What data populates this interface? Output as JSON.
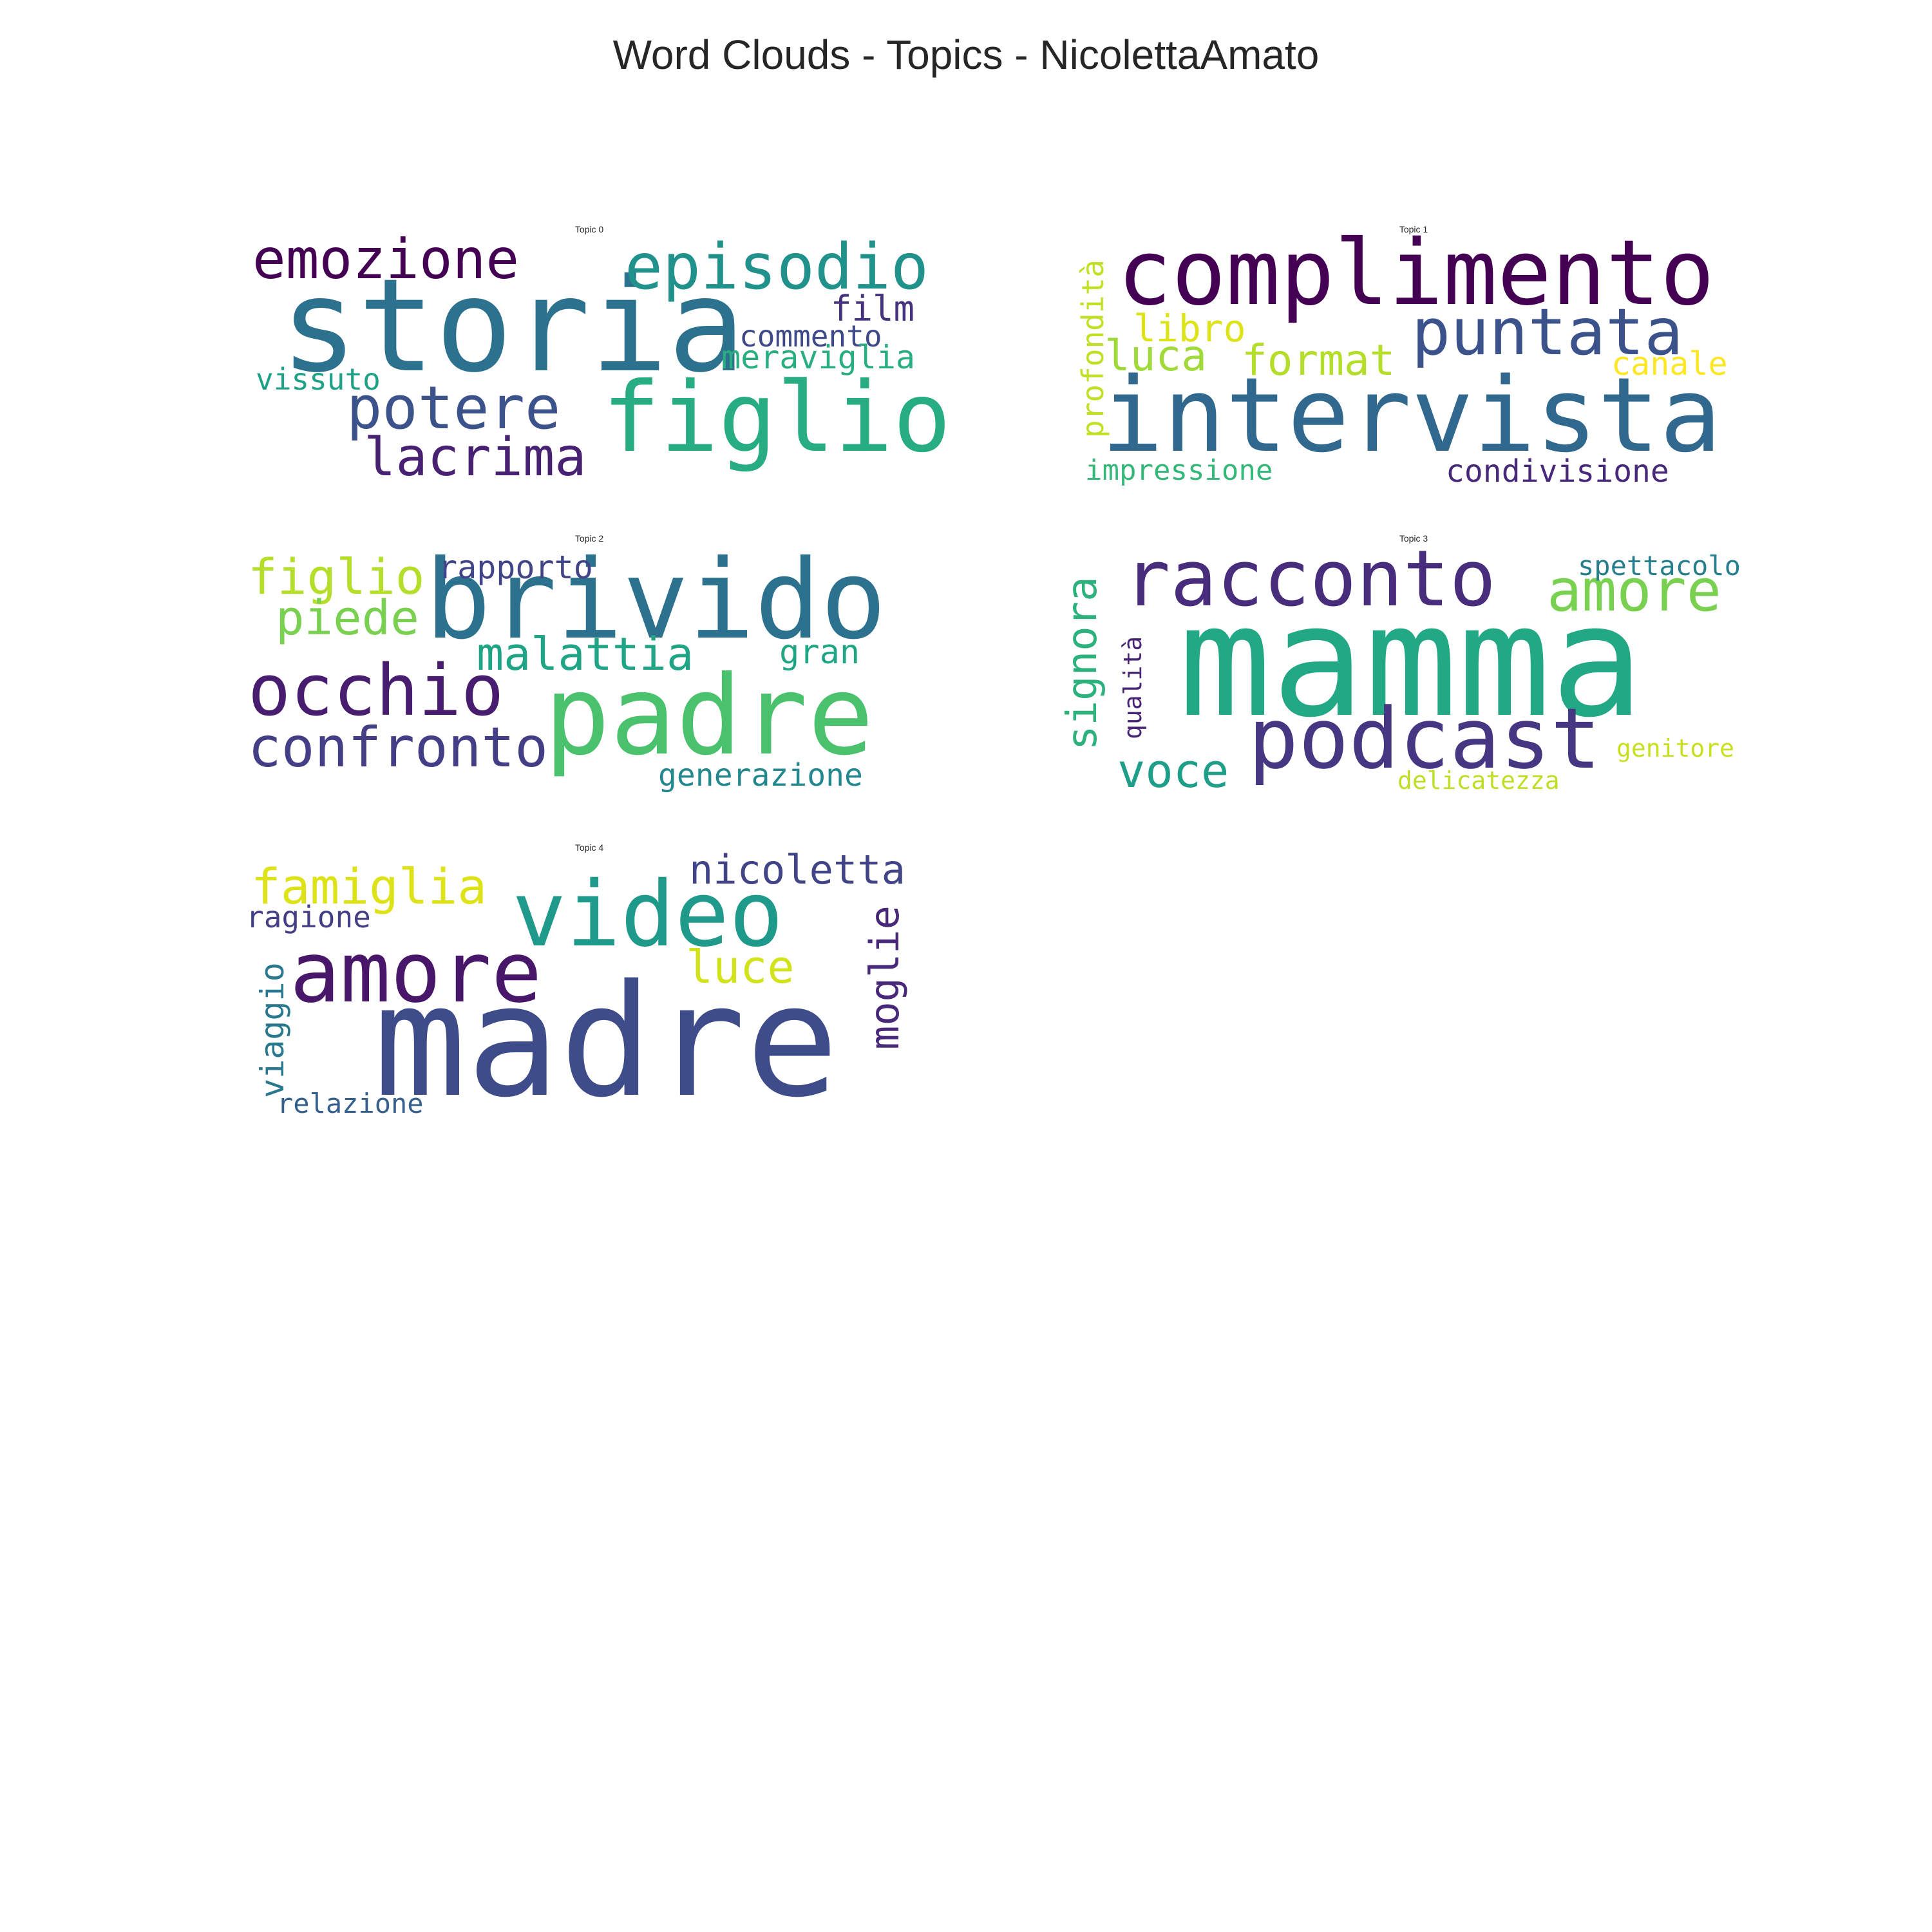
{
  "title": "Word Clouds - Topics - NicolettaAmato",
  "chart_data": {
    "type": "wordcloud",
    "panels": [
      {
        "title": "Topic 0",
        "words": [
          {
            "text": "storia",
            "color": "#2c728e"
          },
          {
            "text": "figlio",
            "color": "#27ad81"
          },
          {
            "text": "episodio",
            "color": "#21918c"
          },
          {
            "text": "emozione",
            "color": "#440154"
          },
          {
            "text": "potere",
            "color": "#3b528b"
          },
          {
            "text": "lacrima",
            "color": "#482173"
          },
          {
            "text": "film",
            "color": "#46327e"
          },
          {
            "text": "commento",
            "color": "#3e4989"
          },
          {
            "text": "meraviglia",
            "color": "#28ae80"
          },
          {
            "text": "vissuto",
            "color": "#1fa187"
          }
        ]
      },
      {
        "title": "Topic 1",
        "words": [
          {
            "text": "complimento",
            "color": "#440154"
          },
          {
            "text": "intervista",
            "color": "#31688e"
          },
          {
            "text": "puntata",
            "color": "#3b528b"
          },
          {
            "text": "format",
            "color": "#b5de2b"
          },
          {
            "text": "luca",
            "color": "#a0da39"
          },
          {
            "text": "libro",
            "color": "#dde318"
          },
          {
            "text": "canale",
            "color": "#fde725"
          },
          {
            "text": "profondità",
            "color": "#c2df23"
          },
          {
            "text": "impressione",
            "color": "#35b779"
          },
          {
            "text": "condivisione",
            "color": "#482878"
          }
        ]
      },
      {
        "title": "Topic 2",
        "words": [
          {
            "text": "brivido",
            "color": "#2c728e"
          },
          {
            "text": "padre",
            "color": "#4ac16d"
          },
          {
            "text": "occhio",
            "color": "#481c6e"
          },
          {
            "text": "confronto",
            "color": "#433e85"
          },
          {
            "text": "figlio",
            "color": "#b5de2b"
          },
          {
            "text": "piede",
            "color": "#7ad151"
          },
          {
            "text": "malattia",
            "color": "#20a486"
          },
          {
            "text": "rapporto",
            "color": "#414487"
          },
          {
            "text": "gran",
            "color": "#21a685"
          },
          {
            "text": "generazione",
            "color": "#23888e"
          }
        ]
      },
      {
        "title": "Topic 3",
        "words": [
          {
            "text": "mamma",
            "color": "#22a884"
          },
          {
            "text": "racconto",
            "color": "#472d7b"
          },
          {
            "text": "podcast",
            "color": "#453781"
          },
          {
            "text": "amore",
            "color": "#7ad151"
          },
          {
            "text": "voce",
            "color": "#1f9e89"
          },
          {
            "text": "signora",
            "color": "#2db27d"
          },
          {
            "text": "spettacolo",
            "color": "#277f8e"
          },
          {
            "text": "genitore",
            "color": "#c8e020"
          },
          {
            "text": "delicatezza",
            "color": "#bddf26"
          },
          {
            "text": "qualità",
            "color": "#482475"
          }
        ]
      },
      {
        "title": "Topic 4",
        "words": [
          {
            "text": "madre",
            "color": "#3e4c8a"
          },
          {
            "text": "video",
            "color": "#1f9a8a"
          },
          {
            "text": "amore",
            "color": "#481769"
          },
          {
            "text": "famiglia",
            "color": "#dde318"
          },
          {
            "text": "nicoletta",
            "color": "#414487"
          },
          {
            "text": "luce",
            "color": "#d2e21b"
          },
          {
            "text": "moglie",
            "color": "#482878"
          },
          {
            "text": "ragione",
            "color": "#433e85"
          },
          {
            "text": "viaggio",
            "color": "#2a788e"
          },
          {
            "text": "relazione",
            "color": "#355f8d"
          }
        ]
      }
    ]
  }
}
